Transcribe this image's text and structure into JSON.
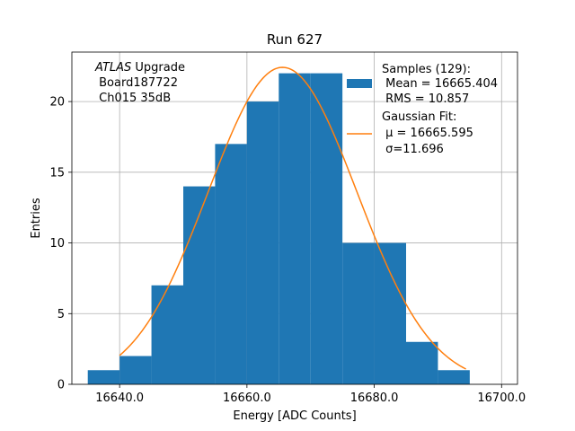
{
  "chart_data": {
    "type": "bar",
    "title": "Run 627",
    "xlabel": "Energy [ADC Counts]",
    "ylabel": "Entries",
    "xlim": [
      16632.5,
      16702.5
    ],
    "ylim": [
      0,
      23.5
    ],
    "x_ticks": [
      16640.0,
      16660.0,
      16680.0,
      16700.0
    ],
    "x_tick_labels": [
      "16640.0",
      "16660.0",
      "16680.0",
      "16700.0"
    ],
    "y_ticks": [
      0,
      5,
      10,
      15,
      20
    ],
    "y_tick_labels": [
      "0",
      "5",
      "10",
      "15",
      "20"
    ],
    "grid": true,
    "histogram": {
      "bin_edges": [
        16635,
        16640,
        16645,
        16650,
        16655,
        16660,
        16665,
        16670,
        16675,
        16680,
        16685,
        16690,
        16695
      ],
      "counts": [
        1,
        2,
        7,
        14,
        17,
        20,
        22,
        22,
        10,
        10,
        3,
        1
      ],
      "color": "#1f77b4"
    },
    "fit": {
      "mu": 16665.595,
      "sigma": 11.696,
      "amplitude": 22.42,
      "x_range": [
        16640.0,
        16694.4
      ],
      "color": "#ff7f0e"
    },
    "legend": {
      "placement": "top-right",
      "entries": [
        {
          "lines": [
            "Samples (129):",
            " Mean = 16665.404",
            " RMS = 10.857"
          ]
        },
        {
          "lines": [
            "Gaussian Fit:",
            " μ = 16665.595",
            " σ=11.696"
          ]
        }
      ]
    },
    "annotation": {
      "italic": "ATLAS",
      "rest": " Upgrade",
      "lines": [
        " Board187722",
        " Ch015 35dB"
      ]
    }
  }
}
